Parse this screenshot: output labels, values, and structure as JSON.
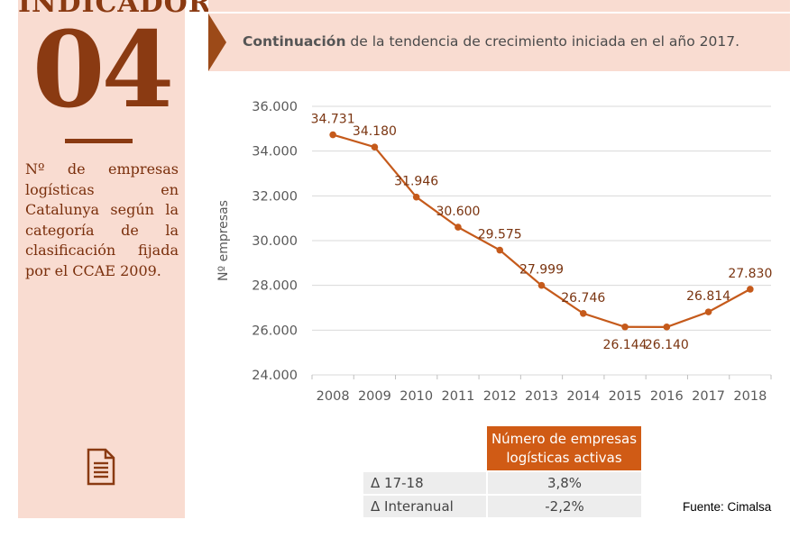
{
  "sidebar": {
    "title": "INDICADOR",
    "number": "04",
    "description_lines": [
      "Nº de empresas",
      "logísticas en",
      "Catalunya según",
      "la categoría de",
      "la clasificación",
      "fijada"
    ],
    "description_last": "por el CCAE 2009.",
    "icon": "document-icon"
  },
  "subtitle": {
    "bold": "Continuación",
    "rest": " de la tendencia de crecimiento iniciada en el año 2017."
  },
  "colors": {
    "brand": "#8a3a12",
    "line": "#c55a1b",
    "panel": "#f9dcd1",
    "header": "#d05b15"
  },
  "chart_data": {
    "type": "line",
    "ylabel": "Nº empresas",
    "ylim": [
      24000,
      36000
    ],
    "yticks": [
      24000,
      26000,
      28000,
      30000,
      32000,
      34000,
      36000
    ],
    "ytick_labels": [
      "24.000",
      "26.000",
      "28.000",
      "30.000",
      "32.000",
      "34.000",
      "36.000"
    ],
    "grid": true,
    "x": [
      "2008",
      "2009",
      "2010",
      "2011",
      "2012",
      "2013",
      "2014",
      "2015",
      "2016",
      "2017",
      "2018"
    ],
    "values": [
      34731,
      34180,
      31946,
      30600,
      29575,
      27999,
      26746,
      26144,
      26140,
      26814,
      27830
    ],
    "labels": [
      "34.731",
      "34.180",
      "31.946",
      "30.600",
      "29.575",
      "27.999",
      "26.746",
      "26.144",
      "26.140",
      "26.814",
      "27.830"
    ]
  },
  "table": {
    "header": [
      "Número de empresas",
      "logísticas activas"
    ],
    "rows": [
      {
        "label": "Δ 17-18",
        "value": "3,8%"
      },
      {
        "label": "Δ Interanual",
        "value": "-2,2%"
      }
    ]
  },
  "source": "Fuente: Cimalsa"
}
